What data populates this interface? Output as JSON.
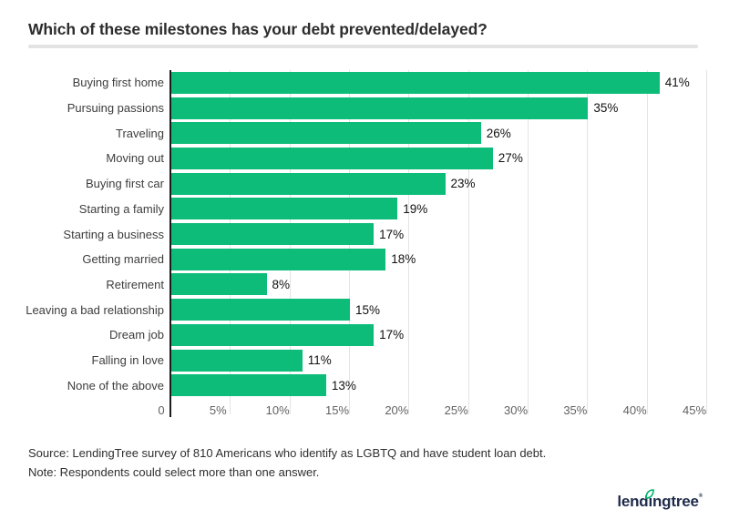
{
  "title": "Which of these milestones has your debt prevented/delayed?",
  "chart_data": {
    "type": "bar",
    "orientation": "horizontal",
    "title": "Which of these milestones has your debt prevented/delayed?",
    "categories": [
      "Buying first home",
      "Pursuing passions",
      "Traveling",
      "Moving out",
      "Buying first car",
      "Starting a family",
      "Starting a business",
      "Getting married",
      "Retirement",
      "Leaving a bad relationship",
      "Dream job",
      "Falling in love",
      "None of the above"
    ],
    "values": [
      41,
      35,
      26,
      27,
      23,
      19,
      17,
      18,
      8,
      15,
      17,
      11,
      13
    ],
    "value_labels": [
      "41%",
      "35%",
      "26%",
      "27%",
      "23%",
      "19%",
      "17%",
      "18%",
      "8%",
      "15%",
      "17%",
      "11%",
      "13%"
    ],
    "x_ticks": [
      "0",
      "5%",
      "10%",
      "15%",
      "20%",
      "25%",
      "30%",
      "35%",
      "40%",
      "45%"
    ],
    "xlim": [
      0,
      45
    ],
    "grid": true,
    "legend": "none",
    "bar_color": "#0dbc79"
  },
  "footer": {
    "source": "Source: LendingTree survey of 810 Americans who identify as LGBTQ and have student loan debt.",
    "note": "Note: Respondents could select more than one answer."
  },
  "logo": {
    "full": "lendingtree",
    "part1": "lend",
    "i": "ı",
    "part2": "ngtree",
    "registered": "®",
    "text_color": "#1e2a49",
    "leaf_color": "#00b26b"
  },
  "colors": {
    "bar_green": "#0dbc79",
    "axis_line": "#1b1b1b",
    "gridline": "#e4e4e4",
    "title_text": "#2d2d2d"
  }
}
